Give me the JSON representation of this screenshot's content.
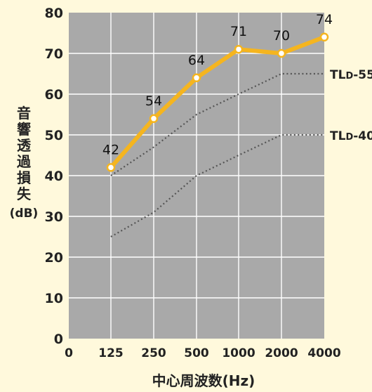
{
  "chart_data": {
    "type": "line",
    "title": "",
    "xlabel": "中心周波数(Hz)",
    "ylabel_chars": [
      "音",
      "響",
      "透",
      "過",
      "損",
      "失"
    ],
    "ylabel_unit": "(dB)",
    "categories": [
      "0",
      "125",
      "250",
      "500",
      "1000",
      "2000",
      "4000"
    ],
    "ylim": [
      0,
      80
    ],
    "yticks": [
      0,
      10,
      20,
      30,
      40,
      50,
      60,
      70,
      80
    ],
    "grid": true,
    "series": [
      {
        "role": "measured",
        "x": [
          "125",
          "250",
          "500",
          "1000",
          "2000",
          "4000"
        ],
        "values": [
          42,
          54,
          64,
          71,
          70,
          74
        ],
        "labels": [
          "42",
          "54",
          "64",
          "71",
          "70",
          "74"
        ],
        "color": "#f5b51f",
        "style": "solid-markers"
      },
      {
        "name": "TLD-55",
        "x": [
          "125",
          "250",
          "500",
          "1000",
          "2000",
          "4000"
        ],
        "values": [
          40,
          47,
          55,
          60,
          65,
          65
        ],
        "color": "#555555",
        "style": "dotted"
      },
      {
        "name": "TLD-40",
        "x": [
          "125",
          "250",
          "500",
          "1000",
          "2000",
          "4000"
        ],
        "values": [
          25,
          31,
          40,
          45,
          50,
          50
        ],
        "color": "#555555",
        "style": "dotted"
      }
    ],
    "legend_labels": [
      {
        "main": "TL",
        "sub": "D",
        "suffix": "-55"
      },
      {
        "main": "TL",
        "sub": "D",
        "suffix": "-40"
      }
    ],
    "colors": {
      "background": "#fff9dc",
      "plot_area": "#a9a9a9",
      "grid": "#ffffff",
      "measured_line": "#f5b51f",
      "marker_fill": "#ffffff",
      "reference_lines": "#555555"
    }
  }
}
